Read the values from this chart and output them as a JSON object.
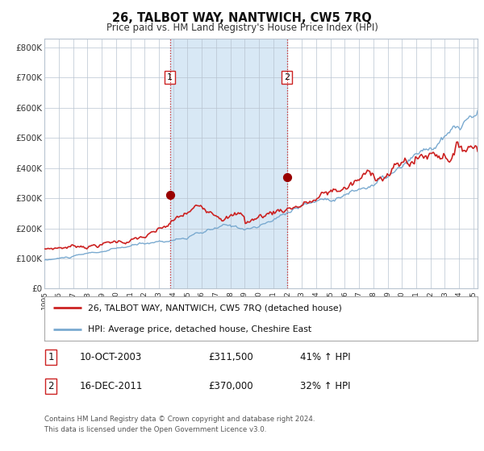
{
  "title": "26, TALBOT WAY, NANTWICH, CW5 7RQ",
  "subtitle": "Price paid vs. HM Land Registry's House Price Index (HPI)",
  "title_fontsize": 10.5,
  "subtitle_fontsize": 8.5,
  "ylim": [
    0,
    830000
  ],
  "xlim_start": 1995.0,
  "xlim_end": 2025.3,
  "yticks": [
    0,
    100000,
    200000,
    300000,
    400000,
    500000,
    600000,
    700000,
    800000
  ],
  "ytick_labels": [
    "£0",
    "£100K",
    "£200K",
    "£300K",
    "£400K",
    "£500K",
    "£600K",
    "£700K",
    "£800K"
  ],
  "xtick_years": [
    1995,
    1996,
    1997,
    1998,
    1999,
    2000,
    2001,
    2002,
    2003,
    2004,
    2005,
    2006,
    2007,
    2008,
    2009,
    2010,
    2011,
    2012,
    2013,
    2014,
    2015,
    2016,
    2017,
    2018,
    2019,
    2020,
    2021,
    2022,
    2023,
    2024,
    2025
  ],
  "sale1_date": 2003.78,
  "sale1_price": 311500,
  "sale1_label": "1",
  "sale2_date": 2011.96,
  "sale2_price": 370000,
  "sale2_label": "2",
  "shading_color": "#d8e8f5",
  "grid_color": "#b8c4d0",
  "bg_color": "#ffffff",
  "red_line_color": "#cc2222",
  "blue_line_color": "#7aaad0",
  "dashed_line_color": "#cc2222",
  "sale_dot_color": "#990000",
  "legend_red_label": "26, TALBOT WAY, NANTWICH, CW5 7RQ (detached house)",
  "legend_blue_label": "HPI: Average price, detached house, Cheshire East",
  "table_row1": [
    "1",
    "10-OCT-2003",
    "£311,500",
    "41% ↑ HPI"
  ],
  "table_row2": [
    "2",
    "16-DEC-2011",
    "£370,000",
    "32% ↑ HPI"
  ],
  "footnote": "Contains HM Land Registry data © Crown copyright and database right 2024.\nThis data is licensed under the Open Government Licence v3.0.",
  "footnote_fontsize": 6.2
}
